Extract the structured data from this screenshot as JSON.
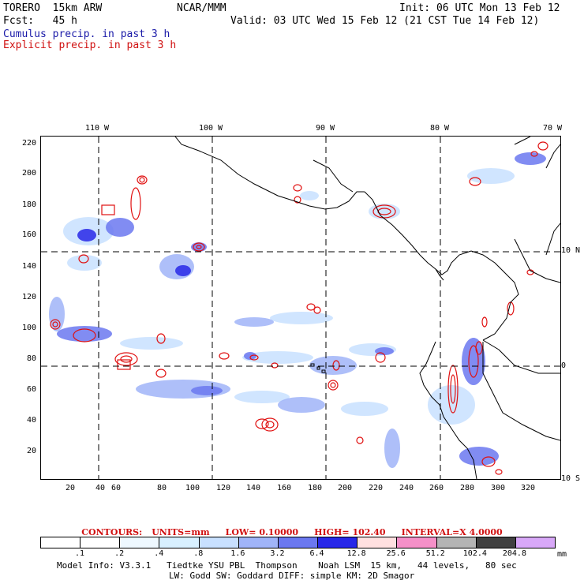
{
  "header": {
    "model": "TORERO  15km ARW",
    "org": "NCAR/MMM",
    "init": "Init: 06 UTC Mon 13 Feb 12",
    "fcst": "Fcst:   45 h",
    "valid": "Valid: 03 UTC Wed 15 Feb 12 (21 CST Tue 14 Feb 12)",
    "cumulus": "Cumulus precip. in past 3 h",
    "explicit": "Explicit precip. in past 3 h"
  },
  "axes": {
    "y_ticks": [
      "220",
      "200",
      "180",
      "160",
      "140",
      "120",
      "100",
      "80",
      "60",
      "40",
      "20"
    ],
    "x_ticks": [
      "20",
      "40",
      "60",
      "80",
      "100",
      "120",
      "140",
      "160",
      "180",
      "200",
      "220",
      "240",
      "260",
      "280",
      "300",
      "320"
    ],
    "lon_labels": [
      "110 W",
      "100 W",
      "90 W",
      "80 W",
      "70 W"
    ],
    "lat_labels": [
      "10 N",
      "0",
      "10 S"
    ]
  },
  "contours": {
    "title": "CONTOURS:",
    "units": "UNITS=mm",
    "low": "LOW= 0.10000",
    "high": "HIGH=  102.40",
    "interval": "INTERVAL=X  4.0000"
  },
  "colorbar": {
    "labels": [
      ".1",
      ".2",
      ".4",
      ".8",
      "1.6",
      "3.2",
      "6.4",
      "12.8",
      "25.6",
      "51.2",
      "102.4",
      "204.8"
    ],
    "unit": "mm",
    "colors": [
      "#ffffff",
      "#ffffff",
      "#eef8ff",
      "#d8f0ff",
      "#c8e0ff",
      "#a0b4f8",
      "#6b78f0",
      "#2828e8",
      "#ffe0e0",
      "#f590c8",
      "#b4b4b4",
      "#404040",
      "#d8a8f8"
    ]
  },
  "footer": {
    "line1": "Model Info: V3.3.1   Tiedtke YSU PBL  Thompson    Noah LSM  15 km,   44 levels,   80 sec",
    "line2": "LW: Godd SW: Goddard DIFF: simple KM: 2D Smagor"
  }
}
